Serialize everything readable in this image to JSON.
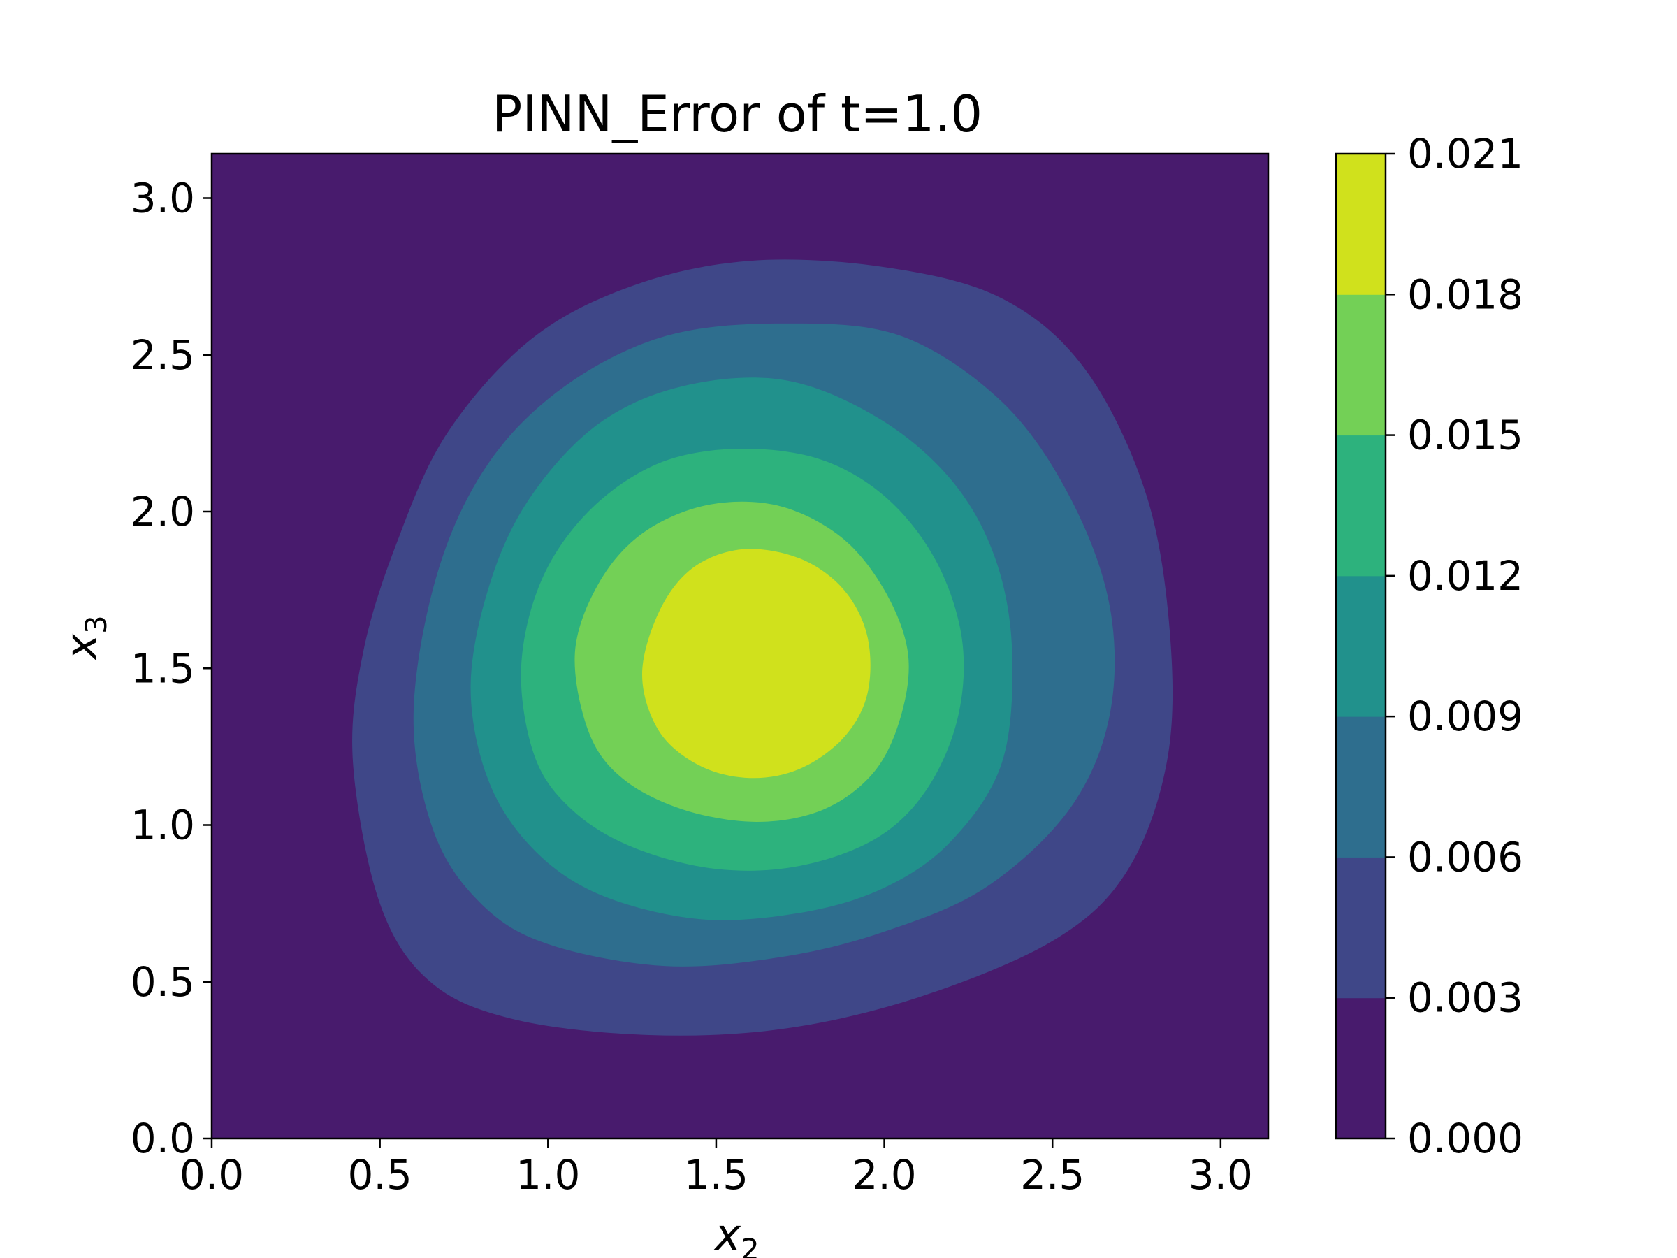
{
  "chart_data": {
    "type": "contour",
    "title": "PINN_Error of t=1.0",
    "xlabel": "x",
    "xlabel_sub": "2",
    "ylabel": "x",
    "ylabel_sub": "3",
    "xlim": [
      0.0,
      3.14159
    ],
    "ylim": [
      0.0,
      3.14159
    ],
    "x_ticks": [
      "0.0",
      "0.5",
      "1.0",
      "1.5",
      "2.0",
      "2.5",
      "3.0"
    ],
    "y_ticks": [
      "0.0",
      "0.5",
      "1.0",
      "1.5",
      "2.0",
      "2.5",
      "3.0"
    ],
    "colorbar": {
      "levels": [
        0.0,
        0.003,
        0.006,
        0.009,
        0.012,
        0.015,
        0.018,
        0.021
      ],
      "tick_labels": [
        "0.000",
        "0.003",
        "0.006",
        "0.009",
        "0.012",
        "0.015",
        "0.018",
        "0.021"
      ],
      "colors": [
        "#481b6d",
        "#3f4788",
        "#2e6e8e",
        "#21918c",
        "#2db27d",
        "#73d056",
        "#d0e11c"
      ]
    },
    "contour_regions": [
      {
        "level": 0.003,
        "points": [
          [
            0.42,
            1.2
          ],
          [
            0.5,
            0.75
          ],
          [
            0.65,
            0.5
          ],
          [
            0.9,
            0.38
          ],
          [
            1.3,
            0.33
          ],
          [
            1.7,
            0.35
          ],
          [
            2.1,
            0.45
          ],
          [
            2.5,
            0.63
          ],
          [
            2.72,
            0.85
          ],
          [
            2.84,
            1.2
          ],
          [
            2.85,
            1.6
          ],
          [
            2.78,
            2.05
          ],
          [
            2.6,
            2.45
          ],
          [
            2.35,
            2.68
          ],
          [
            2.0,
            2.78
          ],
          [
            1.6,
            2.8
          ],
          [
            1.25,
            2.72
          ],
          [
            0.95,
            2.55
          ],
          [
            0.7,
            2.25
          ],
          [
            0.55,
            1.9
          ],
          [
            0.45,
            1.55
          ]
        ]
      },
      {
        "level": 0.006,
        "points": [
          [
            0.6,
            1.35
          ],
          [
            0.66,
            0.98
          ],
          [
            0.8,
            0.75
          ],
          [
            1.0,
            0.62
          ],
          [
            1.35,
            0.55
          ],
          [
            1.7,
            0.58
          ],
          [
            2.0,
            0.66
          ],
          [
            2.3,
            0.8
          ],
          [
            2.55,
            1.05
          ],
          [
            2.67,
            1.35
          ],
          [
            2.67,
            1.7
          ],
          [
            2.55,
            2.05
          ],
          [
            2.35,
            2.35
          ],
          [
            2.05,
            2.56
          ],
          [
            1.7,
            2.6
          ],
          [
            1.35,
            2.56
          ],
          [
            1.05,
            2.4
          ],
          [
            0.82,
            2.15
          ],
          [
            0.67,
            1.8
          ]
        ]
      },
      {
        "level": 0.009,
        "points": [
          [
            0.77,
            1.45
          ],
          [
            0.82,
            1.15
          ],
          [
            0.95,
            0.93
          ],
          [
            1.15,
            0.78
          ],
          [
            1.45,
            0.7
          ],
          [
            1.75,
            0.72
          ],
          [
            2.0,
            0.8
          ],
          [
            2.2,
            0.95
          ],
          [
            2.35,
            1.2
          ],
          [
            2.38,
            1.55
          ],
          [
            2.33,
            1.85
          ],
          [
            2.2,
            2.1
          ],
          [
            1.98,
            2.3
          ],
          [
            1.7,
            2.42
          ],
          [
            1.4,
            2.4
          ],
          [
            1.15,
            2.28
          ],
          [
            0.95,
            2.05
          ],
          [
            0.83,
            1.78
          ]
        ]
      },
      {
        "level": 0.012,
        "points": [
          [
            0.92,
            1.5
          ],
          [
            0.96,
            1.22
          ],
          [
            1.07,
            1.05
          ],
          [
            1.25,
            0.93
          ],
          [
            1.5,
            0.86
          ],
          [
            1.75,
            0.87
          ],
          [
            1.98,
            0.96
          ],
          [
            2.13,
            1.12
          ],
          [
            2.22,
            1.35
          ],
          [
            2.23,
            1.6
          ],
          [
            2.15,
            1.85
          ],
          [
            2.0,
            2.05
          ],
          [
            1.8,
            2.17
          ],
          [
            1.55,
            2.2
          ],
          [
            1.32,
            2.15
          ],
          [
            1.12,
            2.0
          ],
          [
            0.98,
            1.78
          ]
        ]
      },
      {
        "level": 0.015,
        "points": [
          [
            1.08,
            1.55
          ],
          [
            1.12,
            1.3
          ],
          [
            1.22,
            1.15
          ],
          [
            1.4,
            1.05
          ],
          [
            1.62,
            1.01
          ],
          [
            1.82,
            1.05
          ],
          [
            1.97,
            1.17
          ],
          [
            2.05,
            1.35
          ],
          [
            2.07,
            1.55
          ],
          [
            2.0,
            1.75
          ],
          [
            1.87,
            1.92
          ],
          [
            1.68,
            2.02
          ],
          [
            1.47,
            2.02
          ],
          [
            1.28,
            1.93
          ],
          [
            1.15,
            1.77
          ]
        ]
      },
      {
        "level": 0.018,
        "points": [
          [
            1.28,
            1.48
          ],
          [
            1.33,
            1.3
          ],
          [
            1.45,
            1.19
          ],
          [
            1.6,
            1.15
          ],
          [
            1.75,
            1.18
          ],
          [
            1.88,
            1.28
          ],
          [
            1.95,
            1.42
          ],
          [
            1.95,
            1.6
          ],
          [
            1.88,
            1.75
          ],
          [
            1.75,
            1.85
          ],
          [
            1.58,
            1.88
          ],
          [
            1.43,
            1.82
          ],
          [
            1.33,
            1.68
          ]
        ]
      }
    ]
  }
}
